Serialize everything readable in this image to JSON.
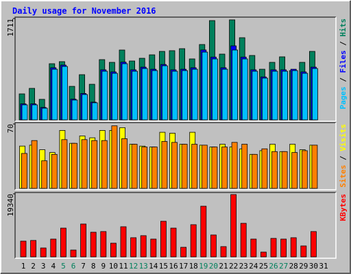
{
  "chart_data": [
    {
      "type": "bar",
      "title": "Daily usage for November 2016",
      "categories": [
        "1",
        "2",
        "3",
        "4",
        "5",
        "6",
        "7",
        "8",
        "9",
        "10",
        "11",
        "12",
        "13",
        "14",
        "15",
        "16",
        "17",
        "18",
        "19",
        "20",
        "21",
        "22",
        "23",
        "24",
        "25",
        "26",
        "27",
        "28",
        "29",
        "30",
        "31"
      ],
      "category_colors": [
        "#000000",
        "#000000",
        "#000000",
        "#000000",
        "#00805c",
        "#00805c",
        "#000000",
        "#000000",
        "#000000",
        "#000000",
        "#000000",
        "#00805c",
        "#00805c",
        "#000000",
        "#000000",
        "#000000",
        "#000000",
        "#000000",
        "#00805c",
        "#00805c",
        "#000000",
        "#000000",
        "#000000",
        "#000000",
        "#000000",
        "#00805c",
        "#00805c",
        "#000000",
        "#000000",
        "#000000",
        "#000000"
      ],
      "ylim": [
        0,
        1711
      ],
      "yticks": [
        1711
      ],
      "legend_separator": "/",
      "series": [
        {
          "name": "Hits",
          "color": "#00805c",
          "values": [
            439,
            532,
            347,
            948,
            983,
            566,
            763,
            601,
            1017,
            971,
            1179,
            994,
            1040,
            1098,
            1156,
            1168,
            1202,
            1029,
            1272,
            1676,
            1110,
            1688,
            1387,
            1087,
            855,
            971,
            1064,
            832,
            971,
            1156,
            null
          ]
        },
        {
          "name": "Files",
          "color": "#0000ff",
          "values": [
            270,
            270,
            210,
            880,
            925,
            350,
            445,
            300,
            845,
            810,
            975,
            845,
            890,
            855,
            935,
            845,
            855,
            880,
            1180,
            1060,
            880,
            1249,
            1060,
            845,
            725,
            845,
            845,
            855,
            810,
            890,
            null
          ]
        },
        {
          "name": "Pages",
          "color": "#00c0ff",
          "values": [
            254,
            254,
            197,
            855,
            902,
            335,
            428,
            289,
            821,
            786,
            948,
            821,
            867,
            832,
            913,
            821,
            832,
            855,
            1144,
            1029,
            855,
            1179,
            1029,
            821,
            705,
            821,
            821,
            832,
            786,
            867,
            null
          ]
        }
      ]
    },
    {
      "type": "bar",
      "ylim": [
        0,
        70
      ],
      "yticks": [
        70
      ],
      "legend_separator": "/",
      "series": [
        {
          "name": "Visits",
          "color": "#ffff00",
          "values": [
            46,
            47,
            42,
            39,
            63,
            49,
            57,
            55,
            63,
            63,
            66,
            48,
            46,
            45,
            61,
            60,
            48,
            61,
            47,
            45,
            48,
            45,
            43,
            37,
            41,
            48,
            40,
            48,
            42,
            47,
            null
          ]
        },
        {
          "name": "Sites",
          "color": "#ff8000",
          "values": [
            38,
            52,
            30,
            37,
            53,
            49,
            53,
            52,
            52,
            68,
            54,
            48,
            45,
            45,
            51,
            50,
            48,
            48,
            47,
            45,
            45,
            50,
            48,
            37,
            43,
            40,
            40,
            39,
            41,
            47,
            null
          ]
        }
      ]
    },
    {
      "type": "bar",
      "ylim": [
        0,
        19340
      ],
      "yticks": [
        19340
      ],
      "series": [
        {
          "name": "KBytes",
          "color": "#ff0000",
          "values": [
            4835,
            5045,
            2733,
            5465,
            8828,
            2102,
            10090,
            7567,
            7777,
            4204,
            9249,
            5886,
            6516,
            5465,
            10931,
            8828,
            2943,
            9880,
            15555,
            6727,
            3153,
            19129,
            10300,
            5465,
            1471,
            5676,
            5465,
            5886,
            3363,
            7777,
            null
          ]
        }
      ]
    }
  ]
}
